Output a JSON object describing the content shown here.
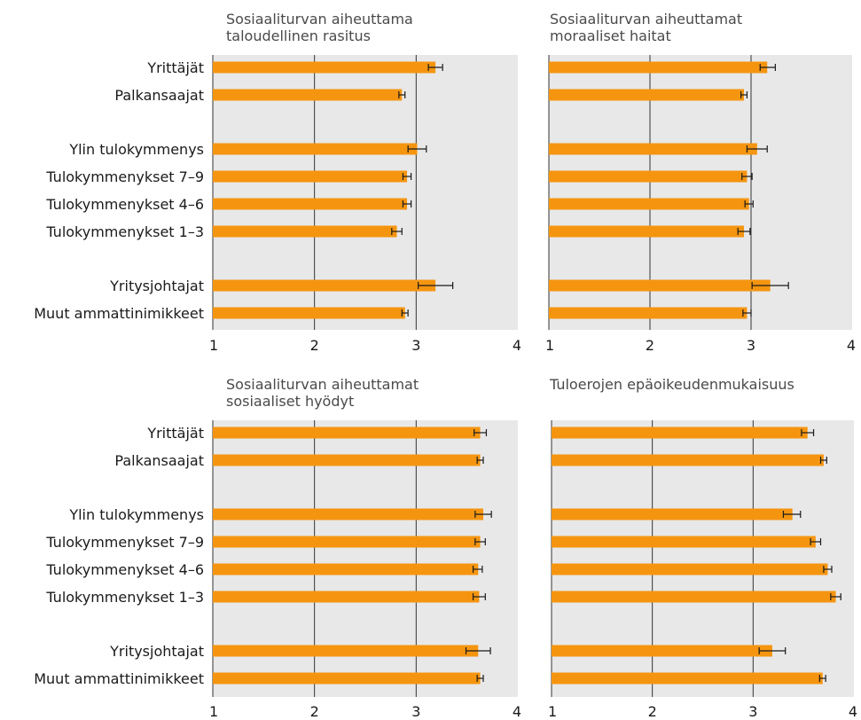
{
  "chart_data": [
    {
      "type": "bar",
      "orientation": "horizontal",
      "title": "Sosiaaliturvan aiheuttama\ntaloudellinen rasitus",
      "categories": [
        "Yrittäjät",
        "Palkansaajat",
        "Ylin tulokymmenys",
        "Tulokymmenykset 7–9",
        "Tulokymmenykset 4–6",
        "Tulokymmenykset 1–3",
        "Yritysjohtajat",
        "Muut ammattinimikkeet"
      ],
      "values": [
        3.19,
        2.86,
        3.01,
        2.91,
        2.91,
        2.81,
        3.19,
        2.89
      ],
      "error_low": [
        3.12,
        2.83,
        2.92,
        2.87,
        2.87,
        2.76,
        3.02,
        2.86
      ],
      "error_high": [
        3.26,
        2.89,
        3.1,
        2.95,
        2.95,
        2.86,
        3.36,
        2.92
      ],
      "xlim": [
        1,
        4
      ],
      "xticks": [
        "1",
        "2",
        "3",
        "4"
      ],
      "grid": true
    },
    {
      "type": "bar",
      "orientation": "horizontal",
      "title": "Sosiaaliturvan aiheuttamat\nmoraaliset haitat",
      "categories": [
        "Yrittäjät",
        "Palkansaajat",
        "Ylin tulokymmenys",
        "Tulokymmenykset 7–9",
        "Tulokymmenykset 4–6",
        "Tulokymmenykset 1–3",
        "Yritysjohtajat",
        "Muut ammattinimikkeet"
      ],
      "values": [
        3.16,
        2.93,
        3.06,
        2.96,
        2.98,
        2.93,
        3.19,
        2.96
      ],
      "error_low": [
        3.09,
        2.9,
        2.96,
        2.91,
        2.94,
        2.87,
        3.01,
        2.92
      ],
      "error_high": [
        3.24,
        2.96,
        3.16,
        3.01,
        3.02,
        2.99,
        3.37,
        3.0
      ],
      "xlim": [
        1,
        4
      ],
      "xticks": [
        "1",
        "2",
        "3",
        "4"
      ],
      "grid": true
    },
    {
      "type": "bar",
      "orientation": "horizontal",
      "title": "Sosiaaliturvan aiheuttamat\nsosiaaliset hyödyt",
      "categories": [
        "Yrittäjät",
        "Palkansaajat",
        "Ylin tulokymmenys",
        "Tulokymmenykset 7–9",
        "Tulokymmenykset 4–6",
        "Tulokymmenykset 1–3",
        "Yritysjohtajat",
        "Muut ammattinimikkeet"
      ],
      "values": [
        3.63,
        3.63,
        3.66,
        3.63,
        3.61,
        3.62,
        3.61,
        3.63
      ],
      "error_low": [
        3.57,
        3.6,
        3.58,
        3.58,
        3.56,
        3.56,
        3.49,
        3.6
      ],
      "error_high": [
        3.69,
        3.66,
        3.74,
        3.68,
        3.65,
        3.68,
        3.73,
        3.66
      ],
      "xlim": [
        1,
        4
      ],
      "xticks": [
        "1",
        "2",
        "3",
        "4"
      ],
      "grid": true
    },
    {
      "type": "bar",
      "orientation": "horizontal",
      "title": "Tuloerojen epäoikeudenmukaisuus",
      "categories": [
        "Yrittäjät",
        "Palkansaajat",
        "Ylin tulokymmenys",
        "Tulokymmenykset 7–9",
        "Tulokymmenykset 4–6",
        "Tulokymmenykset 1–3",
        "Yritysjohtajat",
        "Muut ammattinimikkeet"
      ],
      "values": [
        3.54,
        3.7,
        3.39,
        3.62,
        3.74,
        3.82,
        3.19,
        3.69
      ],
      "error_low": [
        3.48,
        3.67,
        3.3,
        3.57,
        3.7,
        3.77,
        3.06,
        3.66
      ],
      "error_high": [
        3.6,
        3.73,
        3.47,
        3.67,
        3.78,
        3.87,
        3.32,
        3.72
      ],
      "xlim": [
        1,
        4
      ],
      "xticks": [
        "1",
        "2",
        "3",
        "4"
      ],
      "grid": true
    }
  ],
  "colors": {
    "bar": "#f5950f",
    "panel_bg": "#e8e8e8",
    "grid": "#333333",
    "error": "#1a1a1a",
    "title": "#4a4a4a"
  }
}
